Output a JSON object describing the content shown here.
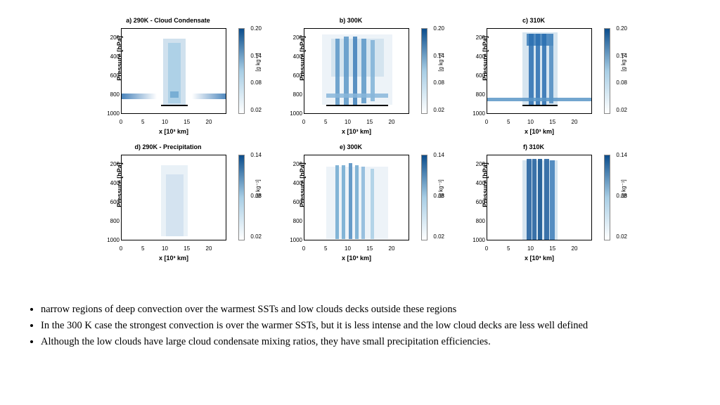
{
  "colors": {
    "cmap_low": "#ffffff",
    "cmap_mid": "#a8cee5",
    "cmap_high": "#0b4d8c",
    "text": "#000000"
  },
  "axes": {
    "y_label": "Pressure [hPa]",
    "x_label": "x [10³  km]",
    "y_lim": [
      1000,
      100
    ],
    "y_ticks": [
      200,
      400,
      600,
      800,
      1000
    ],
    "x_lim": [
      0,
      24
    ],
    "x_ticks": [
      0,
      5,
      10,
      15,
      20
    ],
    "cbar_label": "[g kg⁻¹]"
  },
  "panels": [
    {
      "id": "a",
      "title": "a) 290K - Cloud Condensate",
      "cbar_ticks": [
        0.2,
        0.14,
        0.08,
        0.02
      ],
      "pattern": "cond290",
      "warmbar": [
        9,
        15
      ]
    },
    {
      "id": "b",
      "title": "b) 300K",
      "cbar_ticks": [
        0.2,
        0.14,
        0.08,
        0.02
      ],
      "pattern": "cond300",
      "warmbar": [
        5,
        19
      ]
    },
    {
      "id": "c",
      "title": "c) 310K",
      "cbar_ticks": [
        0.2,
        0.14,
        0.08,
        0.02
      ],
      "pattern": "cond310",
      "warmbar": [
        8,
        16
      ]
    },
    {
      "id": "d",
      "title": "d) 290K - Precipitation",
      "cbar_ticks": [
        0.14,
        0.08,
        0.02
      ],
      "pattern": "prec290"
    },
    {
      "id": "e",
      "title": "e) 300K",
      "cbar_ticks": [
        0.14,
        0.08,
        0.02
      ],
      "pattern": "prec300"
    },
    {
      "id": "f",
      "title": "f) 310K",
      "cbar_ticks": [
        0.14,
        0.08,
        0.02
      ],
      "pattern": "prec310"
    }
  ],
  "bullets": [
    "narrow regions of deep convection over the warmest SSTs and low clouds decks outside these regions",
    "In the 300 K case the strongest convection is over the warmer SSTs, but it is less intense and the low cloud decks are less well defined",
    "Although the low clouds have large cloud condensate mixing ratios, they have small precipitation efficiencies."
  ]
}
